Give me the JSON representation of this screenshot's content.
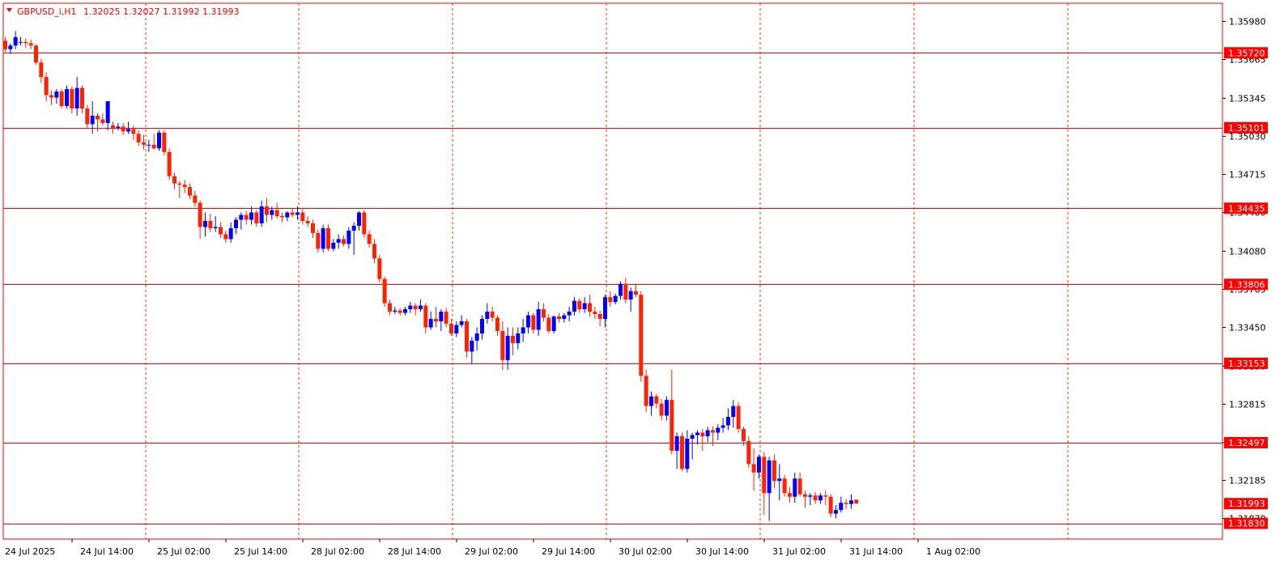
{
  "header": {
    "symbol_label": "GBPUSD_i,H1",
    "ohlc_label": "1.32025 1.32027 1.31992 1.31993"
  },
  "colors": {
    "bull": "#0000ff",
    "bear": "#ff2200",
    "grid": "#ff3300",
    "level": "#ff0000",
    "frame": "#ff0000",
    "text": "#000000",
    "background": "#ffffff"
  },
  "chart_data": {
    "type": "candlestick",
    "title": "GBPUSD_i,H1",
    "ohlc_readout": [
      1.32025,
      1.32027,
      1.31992,
      1.31993
    ],
    "ylim": [
      1.317,
      1.3613
    ],
    "y_ticks": [
      "1.35980",
      "1.35665",
      "1.35345",
      "1.35030",
      "1.34715",
      "1.34400",
      "1.34080",
      "1.33765",
      "1.33450",
      "1.33130",
      "1.32815",
      "1.32497",
      "1.32185",
      "1.31870"
    ],
    "x_ticks": [
      "24 Jul 2025",
      "24 Jul 14:00",
      "25 Jul 02:00",
      "25 Jul 14:00",
      "28 Jul 02:00",
      "28 Jul 14:00",
      "29 Jul 02:00",
      "29 Jul 14:00",
      "30 Jul 02:00",
      "30 Jul 14:00",
      "31 Jul 02:00",
      "31 Jul 14:00",
      "1 Aug 02:00"
    ],
    "levels": [
      "1.35720",
      "1.35101",
      "1.34435",
      "1.33806",
      "1.33153",
      "1.32497",
      "1.31830"
    ],
    "current_price": "1.31993",
    "grid": true,
    "candles": [
      [
        1.3582,
        1.3585,
        1.3573,
        1.3575
      ],
      [
        1.3575,
        1.358,
        1.3571,
        1.3578
      ],
      [
        1.3578,
        1.359,
        1.3575,
        1.3585
      ],
      [
        1.3581,
        1.3585,
        1.3578,
        1.3581
      ],
      [
        1.3581,
        1.3584,
        1.3576,
        1.358
      ],
      [
        1.358,
        1.3583,
        1.3575,
        1.3578
      ],
      [
        1.3578,
        1.3579,
        1.3562,
        1.3564
      ],
      [
        1.3564,
        1.3567,
        1.3547,
        1.3552
      ],
      [
        1.3552,
        1.3556,
        1.3532,
        1.3537
      ],
      [
        1.3537,
        1.3541,
        1.3529,
        1.3535
      ],
      [
        1.3535,
        1.3542,
        1.353,
        1.354
      ],
      [
        1.354,
        1.3542,
        1.3526,
        1.3528
      ],
      [
        1.3528,
        1.3545,
        1.3526,
        1.3542
      ],
      [
        1.3542,
        1.3544,
        1.3522,
        1.3526
      ],
      [
        1.3526,
        1.3552,
        1.352,
        1.3543
      ],
      [
        1.3543,
        1.3545,
        1.3522,
        1.3526
      ],
      [
        1.3526,
        1.3529,
        1.351,
        1.3513
      ],
      [
        1.3513,
        1.3532,
        1.3505,
        1.352
      ],
      [
        1.352,
        1.3522,
        1.3507,
        1.3517
      ],
      [
        1.3517,
        1.3522,
        1.3512,
        1.3514
      ],
      [
        1.3514,
        1.3532,
        1.3508,
        1.3532
      ],
      [
        1.3512,
        1.3515,
        1.3505,
        1.351
      ],
      [
        1.351,
        1.3514,
        1.3508,
        1.3511
      ],
      [
        1.3511,
        1.3514,
        1.3504,
        1.3507
      ],
      [
        1.3507,
        1.3515,
        1.3505,
        1.3509
      ],
      [
        1.3509,
        1.3512,
        1.35,
        1.3505
      ],
      [
        1.3505,
        1.3508,
        1.3495,
        1.3498
      ],
      [
        1.3498,
        1.3504,
        1.3492,
        1.3496
      ],
      [
        1.3496,
        1.35,
        1.349,
        1.3496
      ],
      [
        1.3496,
        1.3505,
        1.3492,
        1.3493
      ],
      [
        1.3493,
        1.3508,
        1.3491,
        1.3506
      ],
      [
        1.3506,
        1.3508,
        1.3487,
        1.349
      ],
      [
        1.349,
        1.3493,
        1.3467,
        1.347
      ],
      [
        1.347,
        1.3473,
        1.3459,
        1.3464
      ],
      [
        1.3464,
        1.3466,
        1.3452,
        1.3463
      ],
      [
        1.3463,
        1.3467,
        1.3456,
        1.3461
      ],
      [
        1.3461,
        1.3464,
        1.3451,
        1.3454
      ],
      [
        1.3454,
        1.3458,
        1.3445,
        1.3448
      ],
      [
        1.3448,
        1.345,
        1.3418,
        1.3428
      ],
      [
        1.3428,
        1.344,
        1.342,
        1.3433
      ],
      [
        1.3433,
        1.3439,
        1.3424,
        1.3427
      ],
      [
        1.3427,
        1.3437,
        1.3424,
        1.3428
      ],
      [
        1.3428,
        1.3432,
        1.3419,
        1.3422
      ],
      [
        1.3422,
        1.3425,
        1.3415,
        1.3418
      ],
      [
        1.3418,
        1.3432,
        1.3415,
        1.3427
      ],
      [
        1.3427,
        1.3436,
        1.3422,
        1.3434
      ],
      [
        1.3434,
        1.344,
        1.3426,
        1.3438
      ],
      [
        1.3438,
        1.3441,
        1.343,
        1.3434
      ],
      [
        1.3434,
        1.3445,
        1.343,
        1.344
      ],
      [
        1.344,
        1.3442,
        1.3428,
        1.3431
      ],
      [
        1.3431,
        1.345,
        1.3428,
        1.3445
      ],
      [
        1.3445,
        1.3452,
        1.3432,
        1.3438
      ],
      [
        1.3438,
        1.3445,
        1.3434,
        1.3442
      ],
      [
        1.3442,
        1.3448,
        1.3435,
        1.3437
      ],
      [
        1.3437,
        1.344,
        1.3432,
        1.3436
      ],
      [
        1.3436,
        1.3441,
        1.3433,
        1.344
      ],
      [
        1.344,
        1.3443,
        1.3436,
        1.3438
      ],
      [
        1.3438,
        1.3445,
        1.3434,
        1.344
      ],
      [
        1.344,
        1.3444,
        1.343,
        1.3433
      ],
      [
        1.3433,
        1.3437,
        1.3428,
        1.3431
      ],
      [
        1.3431,
        1.3434,
        1.3419,
        1.3423
      ],
      [
        1.3423,
        1.3426,
        1.3407,
        1.341
      ],
      [
        1.341,
        1.343,
        1.3407,
        1.3427
      ],
      [
        1.3427,
        1.343,
        1.3408,
        1.341
      ],
      [
        1.341,
        1.3418,
        1.3408,
        1.3415
      ],
      [
        1.3415,
        1.3422,
        1.341,
        1.3418
      ],
      [
        1.3418,
        1.3421,
        1.3412,
        1.3414
      ],
      [
        1.3414,
        1.3428,
        1.341,
        1.3425
      ],
      [
        1.3425,
        1.3432,
        1.3405,
        1.3429
      ],
      [
        1.3429,
        1.3441,
        1.3425,
        1.344
      ],
      [
        1.344,
        1.3442,
        1.3419,
        1.3422
      ],
      [
        1.3422,
        1.3425,
        1.3411,
        1.3414
      ],
      [
        1.3414,
        1.3418,
        1.3398,
        1.3402
      ],
      [
        1.3402,
        1.3405,
        1.3382,
        1.3385
      ],
      [
        1.3385,
        1.3387,
        1.3362,
        1.3365
      ],
      [
        1.3365,
        1.3368,
        1.3355,
        1.3358
      ],
      [
        1.3358,
        1.3362,
        1.3356,
        1.3359
      ],
      [
        1.3359,
        1.3361,
        1.3355,
        1.3357
      ],
      [
        1.3357,
        1.3362,
        1.3355,
        1.336
      ],
      [
        1.336,
        1.3366,
        1.3357,
        1.3363
      ],
      [
        1.3363,
        1.3365,
        1.3355,
        1.336
      ],
      [
        1.336,
        1.3368,
        1.3358,
        1.3363
      ],
      [
        1.3363,
        1.3365,
        1.334,
        1.3345
      ],
      [
        1.3345,
        1.3358,
        1.3343,
        1.3352
      ],
      [
        1.3352,
        1.3362,
        1.3345,
        1.335
      ],
      [
        1.335,
        1.336,
        1.3342,
        1.3358
      ],
      [
        1.3358,
        1.3361,
        1.3345,
        1.3348
      ],
      [
        1.3348,
        1.3352,
        1.3338,
        1.334
      ],
      [
        1.334,
        1.335,
        1.3337,
        1.3347
      ],
      [
        1.3347,
        1.3355,
        1.3345,
        1.335
      ],
      [
        1.335,
        1.3352,
        1.332,
        1.3325
      ],
      [
        1.3325,
        1.3337,
        1.3315,
        1.3334
      ],
      [
        1.3334,
        1.3345,
        1.3326,
        1.334
      ],
      [
        1.334,
        1.3355,
        1.3335,
        1.3352
      ],
      [
        1.3352,
        1.3365,
        1.3348,
        1.3358
      ],
      [
        1.3358,
        1.3362,
        1.335,
        1.3353
      ],
      [
        1.3353,
        1.3355,
        1.3338,
        1.3342
      ],
      [
        1.3342,
        1.335,
        1.331,
        1.3318
      ],
      [
        1.3318,
        1.3345,
        1.331,
        1.3338
      ],
      [
        1.3338,
        1.3345,
        1.3322,
        1.3332
      ],
      [
        1.3332,
        1.3345,
        1.3327,
        1.334
      ],
      [
        1.334,
        1.3352,
        1.3333,
        1.3345
      ],
      [
        1.3345,
        1.3358,
        1.334,
        1.3355
      ],
      [
        1.3355,
        1.3357,
        1.334,
        1.3343
      ],
      [
        1.3343,
        1.3366,
        1.3338,
        1.336
      ],
      [
        1.336,
        1.3365,
        1.335,
        1.3353
      ],
      [
        1.3353,
        1.3356,
        1.334,
        1.3342
      ],
      [
        1.3342,
        1.3355,
        1.334,
        1.3354
      ],
      [
        1.3354,
        1.3357,
        1.3349,
        1.3352
      ],
      [
        1.3352,
        1.3357,
        1.3349,
        1.3355
      ],
      [
        1.3355,
        1.3362,
        1.335,
        1.3358
      ],
      [
        1.3358,
        1.337,
        1.3355,
        1.3367
      ],
      [
        1.3367,
        1.3369,
        1.3357,
        1.336
      ],
      [
        1.336,
        1.337,
        1.3357,
        1.3365
      ],
      [
        1.3365,
        1.3372,
        1.3354,
        1.3358
      ],
      [
        1.3358,
        1.3362,
        1.3352,
        1.3356
      ],
      [
        1.3356,
        1.3359,
        1.3346,
        1.3352
      ],
      [
        1.3352,
        1.3372,
        1.3345,
        1.337
      ],
      [
        1.337,
        1.3375,
        1.3362,
        1.3366
      ],
      [
        1.3366,
        1.3373,
        1.3364,
        1.3371
      ],
      [
        1.3371,
        1.3383,
        1.3368,
        1.3381
      ],
      [
        1.3381,
        1.3386,
        1.3365,
        1.3368
      ],
      [
        1.3368,
        1.3378,
        1.3358,
        1.3375
      ],
      [
        1.3375,
        1.3381,
        1.337,
        1.3372
      ],
      [
        1.3372,
        1.3375,
        1.33,
        1.3305
      ],
      [
        1.3305,
        1.331,
        1.3275,
        1.328
      ],
      [
        1.328,
        1.3292,
        1.3272,
        1.3288
      ],
      [
        1.3288,
        1.329,
        1.3278,
        1.3282
      ],
      [
        1.3282,
        1.3286,
        1.3268,
        1.3272
      ],
      [
        1.3272,
        1.3288,
        1.3268,
        1.3285
      ],
      [
        1.3285,
        1.331,
        1.324,
        1.3243
      ],
      [
        1.3243,
        1.3258,
        1.3228,
        1.3255
      ],
      [
        1.3255,
        1.3258,
        1.3226,
        1.3228
      ],
      [
        1.3228,
        1.326,
        1.3225,
        1.3253
      ],
      [
        1.3253,
        1.3258,
        1.3236,
        1.3256
      ],
      [
        1.3256,
        1.326,
        1.3248,
        1.3258
      ],
      [
        1.3258,
        1.3261,
        1.3243,
        1.3255
      ],
      [
        1.3255,
        1.3263,
        1.325,
        1.326
      ],
      [
        1.326,
        1.3263,
        1.3247,
        1.3258
      ],
      [
        1.3258,
        1.3265,
        1.3252,
        1.3262
      ],
      [
        1.3262,
        1.327,
        1.3258,
        1.3264
      ],
      [
        1.3264,
        1.3278,
        1.326,
        1.3271
      ],
      [
        1.3271,
        1.3285,
        1.3262,
        1.328
      ],
      [
        1.328,
        1.3283,
        1.3258,
        1.3261
      ],
      [
        1.3261,
        1.3263,
        1.3247,
        1.3251
      ],
      [
        1.3251,
        1.3255,
        1.3229,
        1.3232
      ],
      [
        1.3232,
        1.3245,
        1.321,
        1.3225
      ],
      [
        1.3225,
        1.324,
        1.322,
        1.3238
      ],
      [
        1.3238,
        1.3242,
        1.319,
        1.3208
      ],
      [
        1.3208,
        1.3238,
        1.3185,
        1.3235
      ],
      [
        1.3235,
        1.324,
        1.3212,
        1.3218
      ],
      [
        1.3218,
        1.3232,
        1.3202,
        1.322
      ],
      [
        1.322,
        1.3223,
        1.3205,
        1.3208
      ],
      [
        1.3208,
        1.3213,
        1.32,
        1.3205
      ],
      [
        1.3205,
        1.3225,
        1.32,
        1.322
      ],
      [
        1.322,
        1.3225,
        1.3205,
        1.3207
      ],
      [
        1.3207,
        1.321,
        1.3196,
        1.3205
      ],
      [
        1.3205,
        1.3208,
        1.3198,
        1.3206
      ],
      [
        1.3206,
        1.3209,
        1.3199,
        1.3202
      ],
      [
        1.3202,
        1.3208,
        1.3199,
        1.3206
      ],
      [
        1.3206,
        1.321,
        1.3198,
        1.3205
      ],
      [
        1.3205,
        1.3207,
        1.3188,
        1.3191
      ],
      [
        1.3191,
        1.3198,
        1.3187,
        1.3194
      ],
      [
        1.3194,
        1.3205,
        1.3192,
        1.32
      ],
      [
        1.32,
        1.3203,
        1.3195,
        1.3199
      ],
      [
        1.3199,
        1.3207,
        1.3195,
        1.3202
      ],
      [
        1.32025,
        1.32027,
        1.31992,
        1.31993
      ]
    ]
  }
}
